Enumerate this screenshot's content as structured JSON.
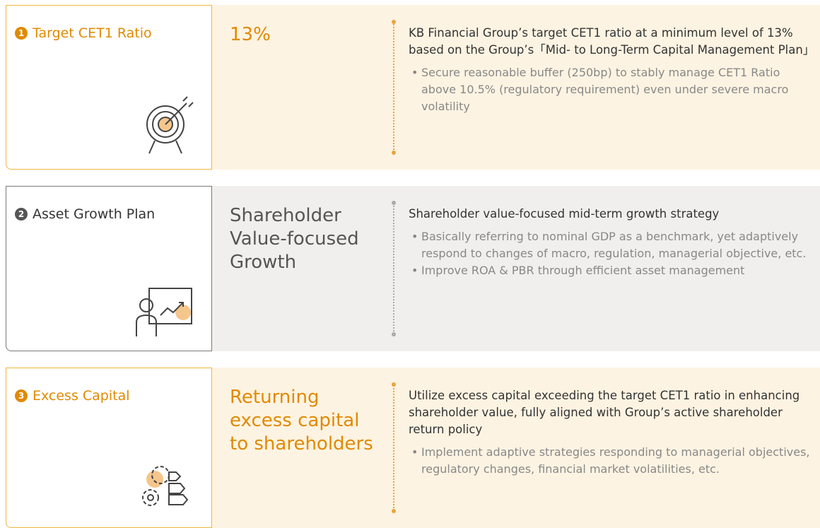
{
  "rows": [
    {
      "number": "1",
      "label": "Target CET1 Ratio",
      "headline": [
        "13%"
      ],
      "text": "KB Financial Group’s target CET1 ratio at a minimum level of 13% based on the Group’s「Mid- to Long-Term Capital Management Plan」",
      "bullets": [
        "Secure reasonable buffer (250bp) to stably manage CET1 Ratio above 10.5% (regulatory requirement) even under severe macro volatility"
      ]
    },
    {
      "number": "2",
      "label": "Asset Growth Plan",
      "headline": [
        "Shareholder",
        "Value-focused",
        "Growth"
      ],
      "text": "Shareholder value-focused mid-term growth strategy",
      "bullets": [
        "Basically referring to nominal GDP as a benchmark, yet adaptively respond to changes of macro, regulation, managerial objective, etc.",
        "Improve ROA & PBR through efficient asset management"
      ]
    },
    {
      "number": "3",
      "label": "Excess Capital",
      "headline": [
        "Returning",
        "excess capital",
        "to shareholders"
      ],
      "text": "Utilize excess capital exceeding the target CET1 ratio in enhancing shareholder value, fully aligned with Group’s active shareholder return policy",
      "bullets": [
        "Implement adaptive strategies responding to managerial objectives, regulatory changes, financial market volatilities, etc."
      ]
    }
  ]
}
